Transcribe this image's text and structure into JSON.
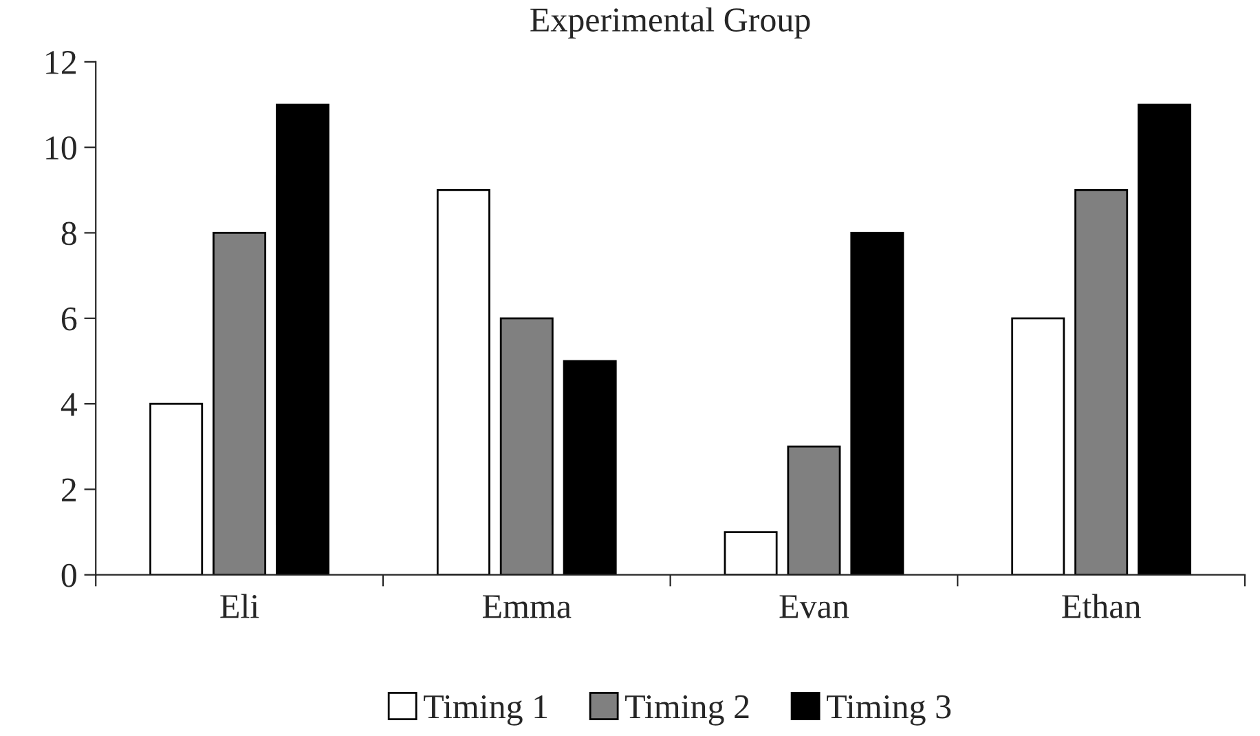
{
  "chart_data": {
    "type": "bar",
    "title": "Experimental Group",
    "categories": [
      "Eli",
      "Emma",
      "Evan",
      "Ethan"
    ],
    "series": [
      {
        "name": "Timing 1",
        "color": "#ffffff",
        "values": [
          4,
          9,
          1,
          6
        ]
      },
      {
        "name": "Timing 2",
        "color": "#808080",
        "values": [
          8,
          6,
          3,
          9
        ]
      },
      {
        "name": "Timing 3",
        "color": "#000000",
        "values": [
          11,
          5,
          8,
          11
        ]
      }
    ],
    "ylim": [
      0,
      12
    ],
    "yticks": [
      0,
      2,
      4,
      6,
      8,
      10,
      12
    ],
    "grid": false,
    "legend": "bottom"
  }
}
